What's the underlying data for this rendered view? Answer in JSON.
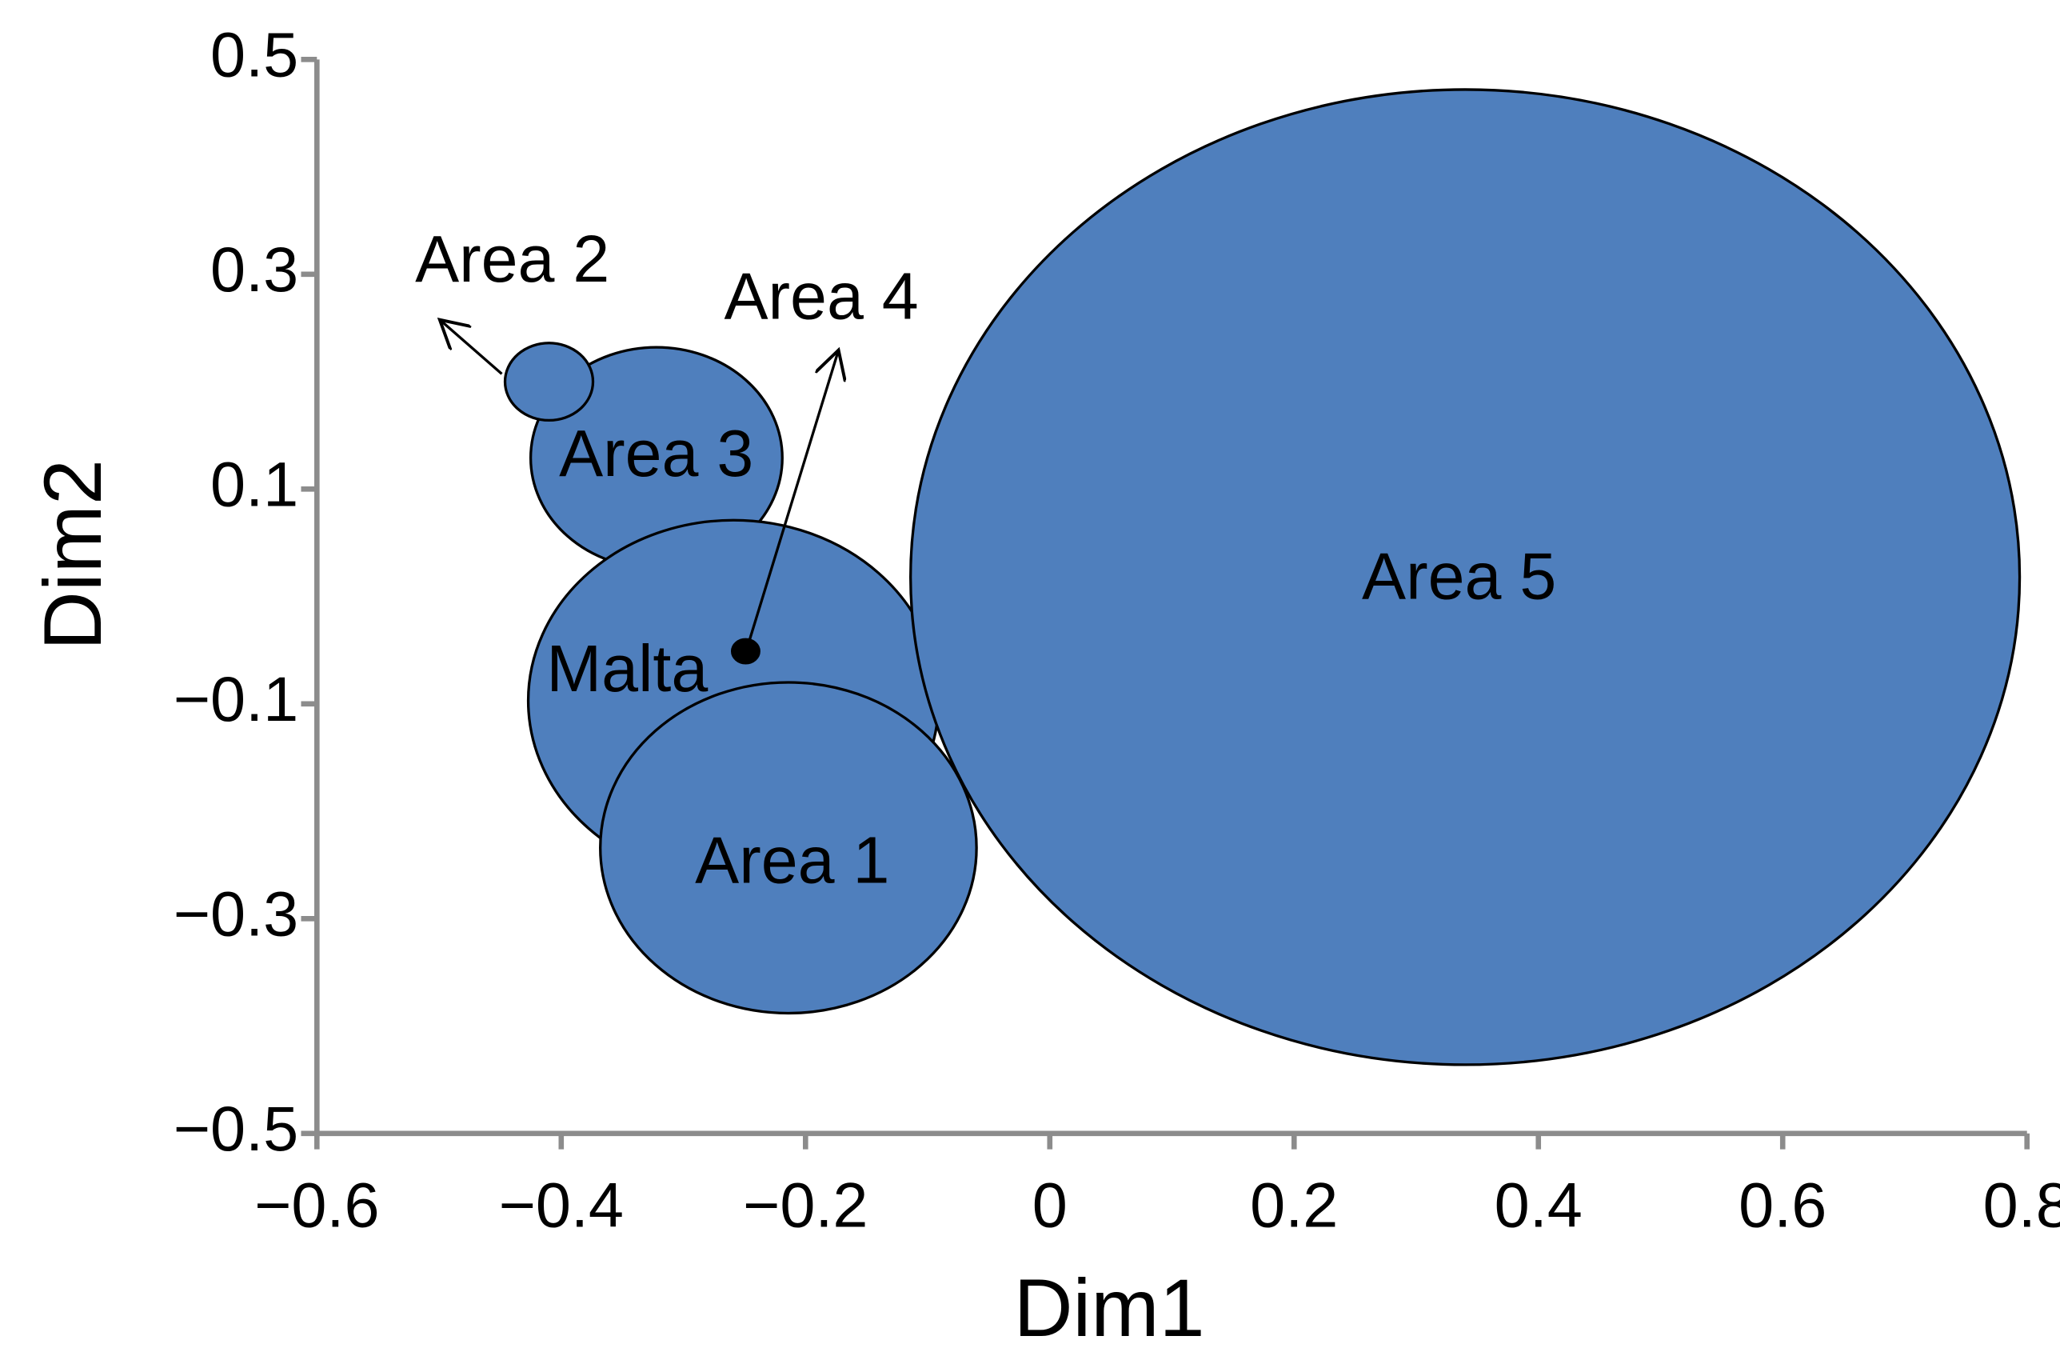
{
  "chart_data": {
    "type": "bubble",
    "x_label": "Dim1",
    "y_label": "Dim2",
    "xlim": [
      -0.6,
      0.8
    ],
    "ylim": [
      -0.5,
      0.5
    ],
    "xticks": [
      {
        "value": -0.6,
        "label": "−0.6"
      },
      {
        "value": -0.4,
        "label": "−0.4"
      },
      {
        "value": -0.2,
        "label": "−0.2"
      },
      0,
      0.2,
      0.4,
      0.6,
      0.8
    ],
    "yticks": [
      {
        "value": -0.5,
        "label": "−0.5"
      },
      {
        "value": -0.3,
        "label": "−0.3"
      },
      {
        "value": -0.1,
        "label": "−0.1"
      },
      0.1,
      0.3,
      0.5
    ],
    "points": [
      {
        "label": "Area 3",
        "x": -0.322,
        "y": 0.129,
        "size": 0.103,
        "color": "#4f7fbd"
      },
      {
        "label": "Area 2",
        "x": -0.41,
        "y": 0.2,
        "size": 0.036,
        "color": "#4f7fbd"
      },
      {
        "label": "Malta",
        "x": -0.259,
        "y": -0.097,
        "size": 0.168,
        "color": "#4f7fbd"
      },
      {
        "label": "Area 1",
        "x": -0.214,
        "y": -0.234,
        "size": 0.154,
        "color": "#4f7fbd"
      },
      {
        "label": "Area 5",
        "x": 0.34,
        "y": 0.018,
        "size": 0.454,
        "color": "#4f7fbd"
      },
      {
        "label": "Area 4",
        "x": -0.249,
        "y": -0.051,
        "size": 0.011,
        "color": "#000000"
      }
    ]
  }
}
